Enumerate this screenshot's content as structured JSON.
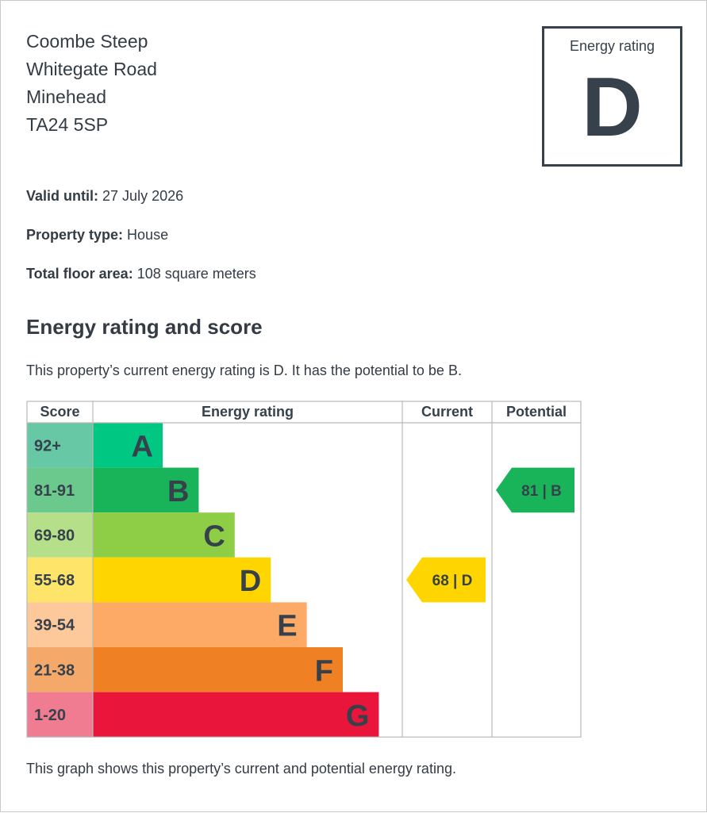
{
  "address": {
    "line1": "Coombe Steep",
    "line2": "Whitegate Road",
    "line3": "Minehead",
    "postcode": "TA24 5SP"
  },
  "rating_box": {
    "label": "Energy rating",
    "letter": "D"
  },
  "details": {
    "valid_until_label": "Valid until:",
    "valid_until_value": "27 July 2026",
    "property_type_label": "Property type:",
    "property_type_value": "House",
    "floor_area_label": "Total floor area:",
    "floor_area_value": "108 square meters"
  },
  "section": {
    "heading": "Energy rating and score",
    "summary": "This property’s current energy rating is D. It has the potential to be B."
  },
  "footer_text": "This graph shows this property’s current and potential energy rating.",
  "chart_data": {
    "type": "table",
    "columns": [
      "Score",
      "Energy rating",
      "Current",
      "Potential"
    ],
    "bands": [
      {
        "score": "92+",
        "letter": "A",
        "color": "#00c781",
        "score_color": "#67c8a6"
      },
      {
        "score": "81-91",
        "letter": "B",
        "color": "#19b459",
        "score_color": "#6cc98e"
      },
      {
        "score": "69-80",
        "letter": "C",
        "color": "#8dce46",
        "score_color": "#b6df8a"
      },
      {
        "score": "55-68",
        "letter": "D",
        "color": "#ffd500",
        "score_color": "#ffe46a"
      },
      {
        "score": "39-54",
        "letter": "E",
        "color": "#fcaa65",
        "score_color": "#fdc89a"
      },
      {
        "score": "21-38",
        "letter": "F",
        "color": "#ef8023",
        "score_color": "#f4a86a"
      },
      {
        "score": "1-20",
        "letter": "G",
        "color": "#e9153b",
        "score_color": "#f07c92"
      }
    ],
    "current": {
      "score": 68,
      "letter": "D",
      "label": "68 | D",
      "color": "#ffd500"
    },
    "potential": {
      "score": 81,
      "letter": "B",
      "label": "81 | B",
      "color": "#19b459"
    }
  }
}
